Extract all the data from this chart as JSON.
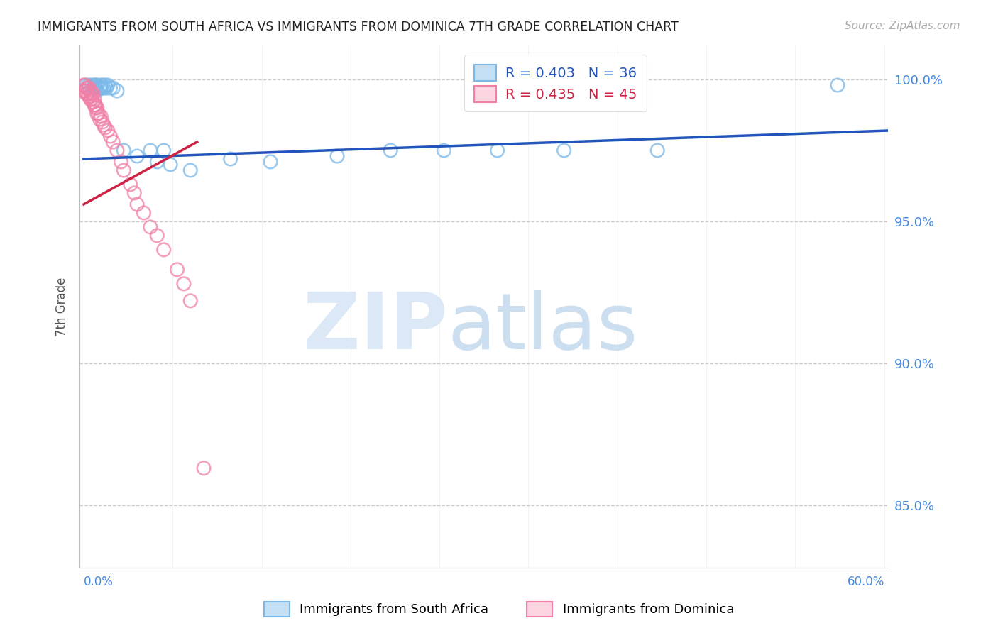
{
  "title": "IMMIGRANTS FROM SOUTH AFRICA VS IMMIGRANTS FROM DOMINICA 7TH GRADE CORRELATION CHART",
  "source": "Source: ZipAtlas.com",
  "ylabel": "7th Grade",
  "ytick_labels": [
    "85.0%",
    "90.0%",
    "95.0%",
    "100.0%"
  ],
  "ytick_values": [
    0.85,
    0.9,
    0.95,
    1.0
  ],
  "xlim": [
    -0.003,
    0.603
  ],
  "ylim": [
    0.828,
    1.012
  ],
  "legend_entry1": "R = 0.403   N = 36",
  "legend_entry2": "R = 0.435   N = 45",
  "legend_label1": "Immigrants from South Africa",
  "legend_label2": "Immigrants from Dominica",
  "blue_color": "#7ab8e8",
  "pink_color": "#f080a8",
  "trendline_blue_color": "#2255bb",
  "trendline_pink_color": "#cc2244",
  "blue_trend_x": [
    0.0,
    0.603
  ],
  "blue_trend_y": [
    0.972,
    0.982
  ],
  "pink_trend_x": [
    0.0,
    0.085
  ],
  "pink_trend_y": [
    0.956,
    0.978
  ],
  "sa_x": [
    0.002,
    0.004,
    0.006,
    0.007,
    0.008,
    0.009,
    0.009,
    0.01,
    0.01,
    0.012,
    0.013,
    0.013,
    0.014,
    0.015,
    0.016,
    0.017,
    0.018,
    0.02,
    0.022,
    0.025,
    0.03,
    0.04,
    0.05,
    0.055,
    0.06,
    0.065,
    0.08,
    0.11,
    0.14,
    0.19,
    0.23,
    0.27,
    0.31,
    0.36,
    0.43,
    0.565
  ],
  "sa_y": [
    0.998,
    0.998,
    0.998,
    0.997,
    0.998,
    0.998,
    0.997,
    0.998,
    0.996,
    0.997,
    0.998,
    0.997,
    0.998,
    0.997,
    0.998,
    0.997,
    0.998,
    0.997,
    0.997,
    0.996,
    0.975,
    0.973,
    0.975,
    0.971,
    0.975,
    0.97,
    0.968,
    0.972,
    0.971,
    0.973,
    0.975,
    0.975,
    0.975,
    0.975,
    0.975,
    0.998
  ],
  "dom_x": [
    0.0,
    0.0,
    0.001,
    0.001,
    0.002,
    0.002,
    0.003,
    0.003,
    0.004,
    0.004,
    0.005,
    0.005,
    0.006,
    0.006,
    0.007,
    0.007,
    0.008,
    0.008,
    0.009,
    0.009,
    0.01,
    0.01,
    0.011,
    0.012,
    0.013,
    0.014,
    0.015,
    0.016,
    0.018,
    0.02,
    0.022,
    0.025,
    0.028,
    0.03,
    0.035,
    0.038,
    0.04,
    0.045,
    0.05,
    0.055,
    0.06,
    0.07,
    0.075,
    0.08,
    0.09
  ],
  "dom_y": [
    0.998,
    0.996,
    0.998,
    0.996,
    0.997,
    0.995,
    0.997,
    0.995,
    0.997,
    0.994,
    0.996,
    0.993,
    0.995,
    0.993,
    0.995,
    0.992,
    0.993,
    0.991,
    0.991,
    0.99,
    0.99,
    0.988,
    0.988,
    0.986,
    0.987,
    0.985,
    0.984,
    0.983,
    0.982,
    0.98,
    0.978,
    0.975,
    0.971,
    0.968,
    0.963,
    0.96,
    0.956,
    0.953,
    0.948,
    0.945,
    0.94,
    0.933,
    0.928,
    0.922,
    0.863
  ]
}
